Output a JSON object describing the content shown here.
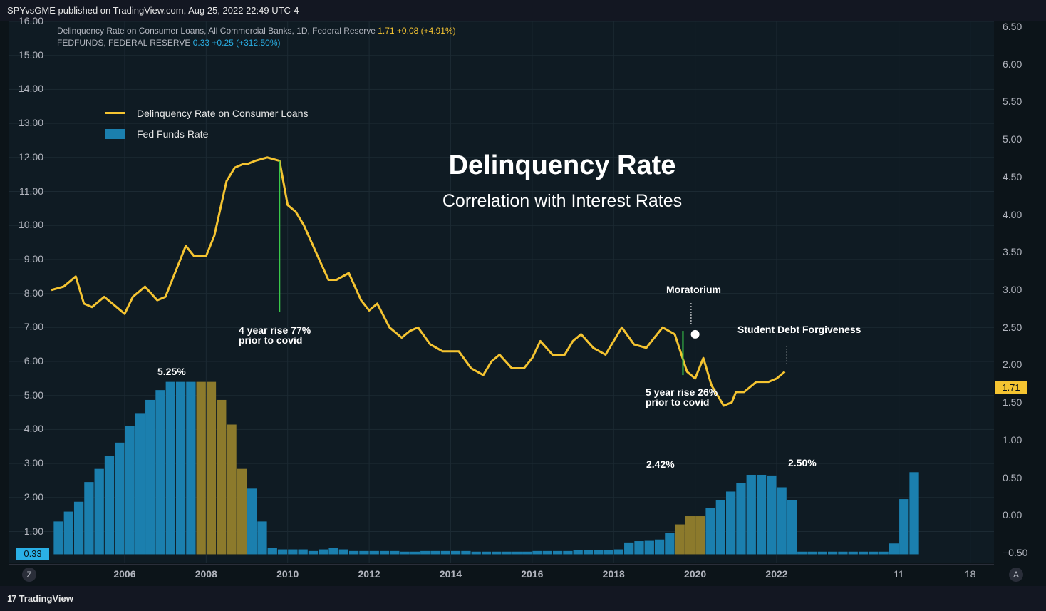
{
  "header": {
    "publisher": "SPYvsGME published on TradingView.com, Aug 25, 2022 22:49 UTC-4"
  },
  "legend_top": {
    "series1_name": "Delinquency Rate on Consumer Loans, All Commercial Banks, 1D, Federal Reserve",
    "series1_value": "1.71",
    "series1_change": "+0.08 (+4.91%)",
    "series2_name": "FEDFUNDS, FEDERAL RESERVE",
    "series2_value": "0.33",
    "series2_change": "+0.25 (+312.50%)"
  },
  "colors": {
    "line": "#f5c431",
    "bar_blue": "#1b7fae",
    "bar_gold": "#8c7a2c",
    "marker": "#3ac94a",
    "background": "#0f1b23"
  },
  "badges": {
    "left_value": "0.33",
    "right_value": "1.71"
  },
  "corners": {
    "left": "Z",
    "right": "A"
  },
  "footer": {
    "brand": "TradingView",
    "brand_mark": "17"
  },
  "chart_data": {
    "type": "bar+line",
    "title": "Delinquency Rate",
    "subtitle": "Correlation with Interest Rates",
    "legend": [
      "Delinquency Rate on Consumer Loans",
      "Fed Funds Rate"
    ],
    "left_axis": {
      "ticks": [
        "1.00",
        "2.00",
        "3.00",
        "4.00",
        "5.00",
        "6.00",
        "7.00",
        "8.00",
        "9.00",
        "10.00",
        "11.00",
        "12.00",
        "13.00",
        "14.00",
        "15.00",
        "16.00"
      ],
      "range": [
        0.33,
        16.0
      ]
    },
    "right_axis": {
      "ticks": [
        "−0.50",
        "0.00",
        "0.50",
        "1.00",
        "1.50",
        "2.00",
        "2.50",
        "3.00",
        "3.50",
        "4.00",
        "4.50",
        "5.00",
        "5.50",
        "6.00",
        "6.50"
      ],
      "range": [
        -0.5,
        6.5
      ]
    },
    "x_axis": {
      "ticks": [
        "2006",
        "2008",
        "2010",
        "2012",
        "2014",
        "2016",
        "2018",
        "2020",
        "2022",
        "11",
        "18"
      ],
      "range": [
        2004.2,
        2027.5
      ]
    },
    "fed_funds": {
      "start": 2004.25,
      "step": 0.25,
      "values": [
        1.0,
        1.3,
        1.6,
        2.2,
        2.6,
        3.0,
        3.4,
        3.9,
        4.3,
        4.7,
        5.0,
        5.25,
        5.25,
        5.25,
        5.25,
        5.25,
        4.7,
        3.95,
        2.6,
        2.0,
        1.0,
        0.2,
        0.15,
        0.15,
        0.15,
        0.1,
        0.15,
        0.2,
        0.15,
        0.1,
        0.1,
        0.1,
        0.1,
        0.1,
        0.08,
        0.08,
        0.1,
        0.1,
        0.1,
        0.1,
        0.1,
        0.08,
        0.08,
        0.08,
        0.08,
        0.08,
        0.08,
        0.1,
        0.1,
        0.1,
        0.1,
        0.12,
        0.12,
        0.12,
        0.12,
        0.15,
        0.36,
        0.4,
        0.41,
        0.45,
        0.66,
        0.91,
        1.16,
        1.16,
        1.41,
        1.66,
        1.91,
        2.16,
        2.42,
        2.42,
        2.4,
        2.04,
        1.65,
        0.08,
        0.08,
        0.08,
        0.08,
        0.08,
        0.08,
        0.08,
        0.08,
        0.08,
        0.33,
        1.68,
        2.5
      ],
      "gold_ranges": [
        [
          2007.6,
          2008.9
        ],
        [
          2019.35,
          2020.1
        ]
      ]
    },
    "delinquency": {
      "x": [
        2004.2,
        2004.5,
        2004.8,
        2005.0,
        2005.2,
        2005.5,
        2005.7,
        2006.0,
        2006.2,
        2006.5,
        2006.8,
        2007.0,
        2007.2,
        2007.5,
        2007.7,
        2008.0,
        2008.2,
        2008.5,
        2008.7,
        2008.9,
        2009.0,
        2009.2,
        2009.5,
        2009.8,
        2010.0,
        2010.2,
        2010.4,
        2010.7,
        2011.0,
        2011.2,
        2011.5,
        2011.8,
        2012.0,
        2012.2,
        2012.5,
        2012.8,
        2013.0,
        2013.2,
        2013.5,
        2013.8,
        2014.0,
        2014.2,
        2014.5,
        2014.8,
        2015.0,
        2015.2,
        2015.5,
        2015.8,
        2016.0,
        2016.2,
        2016.5,
        2016.8,
        2017.0,
        2017.2,
        2017.5,
        2017.8,
        2018.0,
        2018.2,
        2018.5,
        2018.8,
        2019.0,
        2019.2,
        2019.5,
        2019.8,
        2020.0,
        2020.2,
        2020.4,
        2020.7,
        2020.9,
        2021.0,
        2021.2,
        2021.5,
        2021.8,
        2022.0,
        2022.2
      ],
      "values": [
        8.1,
        8.2,
        8.5,
        7.7,
        7.6,
        7.9,
        7.7,
        7.4,
        7.9,
        8.2,
        7.8,
        7.9,
        8.5,
        9.4,
        9.1,
        9.1,
        9.7,
        11.3,
        11.7,
        11.8,
        11.8,
        11.9,
        12.0,
        11.9,
        10.6,
        10.4,
        10.0,
        9.2,
        8.4,
        8.4,
        8.6,
        7.8,
        7.5,
        7.7,
        7.0,
        6.7,
        6.9,
        7.0,
        6.5,
        6.3,
        6.3,
        6.3,
        5.8,
        5.6,
        6.0,
        6.2,
        5.8,
        5.8,
        6.1,
        6.6,
        6.2,
        6.2,
        6.6,
        6.8,
        6.4,
        6.2,
        6.6,
        7.0,
        6.5,
        6.4,
        6.7,
        7.0,
        6.8,
        5.7,
        5.5,
        6.1,
        5.3,
        4.7,
        4.8,
        5.1,
        5.1,
        5.4,
        5.4,
        5.5,
        5.7
      ],
      "last_value": "1.71"
    },
    "annotations": {
      "peak_label": "5.25%",
      "label_2019": "2.42%",
      "label_2022": "2.50%",
      "rise1_line1": "4 year rise 77%",
      "rise1_line2": "prior to covid",
      "rise2_line1": "5 year rise 26%",
      "rise2_line2": "prior to covid",
      "moratorium": "Moratorium",
      "forgiveness": "Student Debt Forgiveness"
    }
  }
}
